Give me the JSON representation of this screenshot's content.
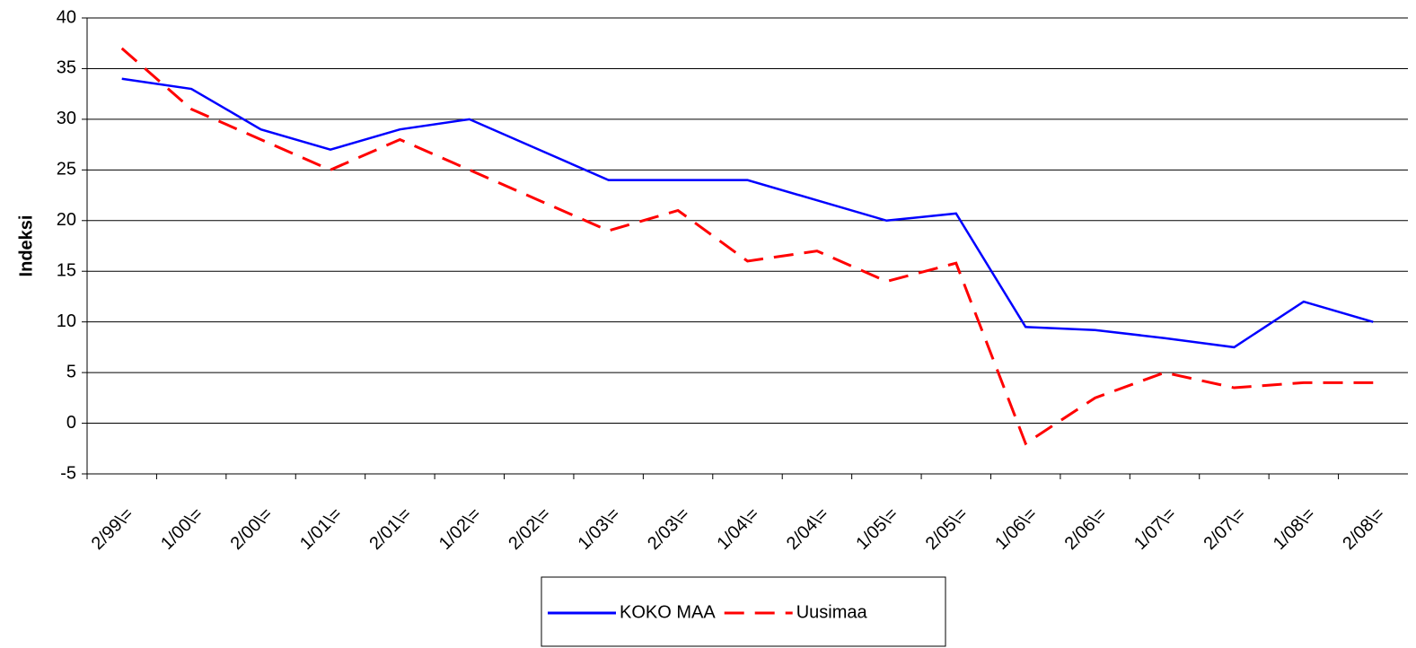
{
  "chart_data": {
    "type": "line",
    "y_label": "Indeksi",
    "categories": [
      "2/99\\=",
      "1/00\\=",
      "2/00\\=",
      "1/01\\=",
      "2/01\\=",
      "1/02\\=",
      "2/02\\=",
      "1/03\\=",
      "2/03\\=",
      "1/04\\=",
      "2/04\\=",
      "1/05\\=",
      "2/05\\=",
      "1/06\\=",
      "2/06\\=",
      "1/07\\=",
      "2/07\\=",
      "1/08\\=",
      "2/08\\="
    ],
    "series": [
      {
        "name": "KOKO MAA",
        "color": "#0000ff",
        "dashed": false,
        "values": [
          34,
          33,
          29,
          27,
          29,
          30,
          27,
          24,
          24,
          24,
          22,
          20,
          20.7,
          9.5,
          9.2,
          8.4,
          7.5,
          12,
          10
        ]
      },
      {
        "name": "Uusimaa",
        "color": "#ff0000",
        "dashed": true,
        "values": [
          37,
          31,
          28,
          25,
          28,
          25,
          22,
          19,
          21,
          16,
          17,
          14,
          15.8,
          -2,
          2.5,
          5,
          3.5,
          4,
          4
        ]
      }
    ],
    "ylim": [
      -5,
      40
    ],
    "yticks": [
      -5,
      0,
      5,
      10,
      15,
      20,
      25,
      30,
      35,
      40
    ],
    "grid": true
  }
}
